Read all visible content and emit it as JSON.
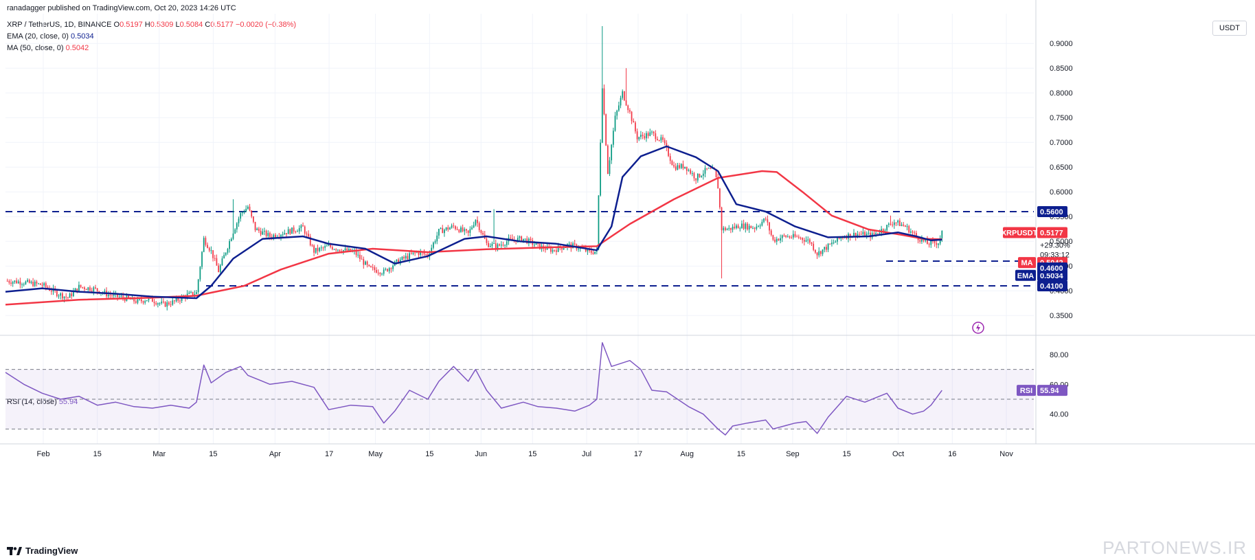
{
  "publisher": "ranadagger published on TradingView.com, Oct 20, 2023 14:26 UTC",
  "legend": {
    "symbol": "XRP / TetherUS, 1D, BINANCE",
    "o_label": "O",
    "o": "0.5197",
    "h_label": "H",
    "h": "0.5309",
    "l_label": "L",
    "l": "0.5084",
    "c_label": "C",
    "c": "0.5177",
    "change": "−0.0020 (−0.38%)",
    "ema_label": "EMA (20, close, 0)",
    "ema_value": "0.5034",
    "ma_label": "MA (50, close, 0)",
    "ma_value": "0.5042",
    "rsi_label": "RSI (14, close)",
    "rsi_value": "55.94"
  },
  "currency_button": "USDT",
  "footer_logo": "TradingView",
  "watermark": "PARTONEWS.IR",
  "colors": {
    "up": "#089981",
    "down": "#f23645",
    "ema": "#0d1f8f",
    "ma": "#f23645",
    "rsi": "#7e57c2",
    "level": "#0d1f8f",
    "grid": "#f0f3fa"
  },
  "chart_data": [
    {
      "type": "candlestick",
      "title": "XRP / TetherUS, 1D, BINANCE",
      "ylim": [
        0.31,
        0.96
      ],
      "y_ticks": [
        "0.9000",
        "0.8500",
        "0.8000",
        "0.7500",
        "0.7000",
        "0.6500",
        "0.6000",
        "0.5500",
        "0.5000",
        "0.4500",
        "0.4000",
        "0.3500"
      ],
      "x_ticks": [
        "Feb",
        "15",
        "Mar",
        "15",
        "Apr",
        "17",
        "May",
        "15",
        "Jun",
        "15",
        "Jul",
        "17",
        "Aug",
        "15",
        "Sep",
        "15",
        "Oct",
        "16",
        "Nov"
      ],
      "horizontal_levels": [
        0.56,
        0.46,
        0.41
      ],
      "price_labels": [
        {
          "text": "0.5600",
          "kind": "level"
        },
        {
          "text": "0.5177",
          "kind": "last",
          "extra": [
            "XRPUSDT",
            "+29.30%",
            "09:33:12"
          ]
        },
        {
          "text": "0.5042",
          "kind": "ma",
          "tag": "MA"
        },
        {
          "text": "0.5034",
          "kind": "ema",
          "tag": "EMA"
        },
        {
          "text": "0.4600",
          "kind": "level"
        },
        {
          "text": "0.4100",
          "kind": "level"
        }
      ],
      "price_path": [
        [
          0,
          0.42
        ],
        [
          8,
          0.418
        ],
        [
          20,
          0.412
        ],
        [
          28,
          0.395
        ],
        [
          34,
          0.386
        ],
        [
          40,
          0.408
        ],
        [
          48,
          0.404
        ],
        [
          56,
          0.392
        ],
        [
          64,
          0.386
        ],
        [
          72,
          0.378
        ],
        [
          78,
          0.384
        ],
        [
          86,
          0.372
        ],
        [
          92,
          0.378
        ],
        [
          98,
          0.39
        ],
        [
          104,
          0.396
        ],
        [
          108,
          0.505
        ],
        [
          112,
          0.48
        ],
        [
          116,
          0.44
        ],
        [
          120,
          0.48
        ],
        [
          124,
          0.52
        ],
        [
          128,
          0.555
        ],
        [
          132,
          0.57
        ],
        [
          136,
          0.525
        ],
        [
          144,
          0.51
        ],
        [
          152,
          0.518
        ],
        [
          162,
          0.528
        ],
        [
          168,
          0.48
        ],
        [
          176,
          0.49
        ],
        [
          184,
          0.482
        ],
        [
          190,
          0.478
        ],
        [
          198,
          0.445
        ],
        [
          206,
          0.438
        ],
        [
          210,
          0.45
        ],
        [
          214,
          0.46
        ],
        [
          224,
          0.478
        ],
        [
          230,
          0.472
        ],
        [
          236,
          0.52
        ],
        [
          244,
          0.53
        ],
        [
          252,
          0.515
        ],
        [
          256,
          0.545
        ],
        [
          262,
          0.495
        ],
        [
          268,
          0.49
        ],
        [
          274,
          0.502
        ],
        [
          282,
          0.505
        ],
        [
          290,
          0.49
        ],
        [
          298,
          0.482
        ],
        [
          306,
          0.492
        ],
        [
          312,
          0.488
        ],
        [
          318,
          0.478
        ],
        [
          322,
          0.48
        ],
        [
          325,
          0.815
        ],
        [
          328,
          0.64
        ],
        [
          332,
          0.75
        ],
        [
          336,
          0.8
        ],
        [
          340,
          0.76
        ],
        [
          344,
          0.71
        ],
        [
          352,
          0.718
        ],
        [
          358,
          0.702
        ],
        [
          364,
          0.65
        ],
        [
          370,
          0.652
        ],
        [
          376,
          0.628
        ],
        [
          382,
          0.645
        ],
        [
          386,
          0.642
        ],
        [
          388,
          0.61
        ],
        [
          390,
          0.525
        ],
        [
          394,
          0.525
        ],
        [
          400,
          0.532
        ],
        [
          408,
          0.528
        ],
        [
          414,
          0.545
        ],
        [
          418,
          0.502
        ],
        [
          424,
          0.51
        ],
        [
          432,
          0.508
        ],
        [
          438,
          0.5
        ],
        [
          442,
          0.475
        ],
        [
          448,
          0.49
        ],
        [
          456,
          0.51
        ],
        [
          464,
          0.515
        ],
        [
          472,
          0.512
        ],
        [
          478,
          0.525
        ],
        [
          484,
          0.54
        ],
        [
          490,
          0.53
        ],
        [
          496,
          0.51
        ],
        [
          502,
          0.495
        ],
        [
          508,
          0.498
        ],
        [
          510,
          0.5177
        ]
      ],
      "wick_events": [
        {
          "x": 124,
          "high": 0.585
        },
        {
          "x": 325,
          "high": 0.935
        },
        {
          "x": 338,
          "high": 0.85
        },
        {
          "x": 390,
          "low": 0.425
        },
        {
          "x": 266,
          "high": 0.565
        },
        {
          "x": 482,
          "high": 0.552
        }
      ],
      "ema20_path": [
        [
          0,
          0.398
        ],
        [
          20,
          0.405
        ],
        [
          40,
          0.398
        ],
        [
          60,
          0.394
        ],
        [
          80,
          0.388
        ],
        [
          104,
          0.385
        ],
        [
          112,
          0.41
        ],
        [
          124,
          0.465
        ],
        [
          140,
          0.505
        ],
        [
          162,
          0.51
        ],
        [
          176,
          0.495
        ],
        [
          196,
          0.485
        ],
        [
          212,
          0.455
        ],
        [
          230,
          0.47
        ],
        [
          250,
          0.505
        ],
        [
          262,
          0.51
        ],
        [
          280,
          0.5
        ],
        [
          300,
          0.495
        ],
        [
          322,
          0.482
        ],
        [
          330,
          0.53
        ],
        [
          336,
          0.63
        ],
        [
          346,
          0.672
        ],
        [
          360,
          0.692
        ],
        [
          376,
          0.67
        ],
        [
          388,
          0.642
        ],
        [
          398,
          0.575
        ],
        [
          414,
          0.56
        ],
        [
          430,
          0.53
        ],
        [
          448,
          0.508
        ],
        [
          470,
          0.51
        ],
        [
          486,
          0.518
        ],
        [
          496,
          0.51
        ],
        [
          504,
          0.502
        ],
        [
          510,
          0.5034
        ]
      ],
      "ma50_path": [
        [
          0,
          0.372
        ],
        [
          40,
          0.382
        ],
        [
          80,
          0.386
        ],
        [
          104,
          0.39
        ],
        [
          130,
          0.41
        ],
        [
          150,
          0.443
        ],
        [
          176,
          0.475
        ],
        [
          200,
          0.485
        ],
        [
          230,
          0.478
        ],
        [
          262,
          0.484
        ],
        [
          300,
          0.488
        ],
        [
          322,
          0.49
        ],
        [
          340,
          0.535
        ],
        [
          364,
          0.585
        ],
        [
          388,
          0.628
        ],
        [
          412,
          0.642
        ],
        [
          420,
          0.64
        ],
        [
          434,
          0.6
        ],
        [
          450,
          0.552
        ],
        [
          470,
          0.524
        ],
        [
          488,
          0.513
        ],
        [
          500,
          0.505
        ],
        [
          510,
          0.5042
        ]
      ]
    },
    {
      "type": "line",
      "title": "RSI (14, close)",
      "ylim": [
        20,
        92
      ],
      "y_ticks": [
        "80.00",
        "60.00",
        "40.00"
      ],
      "band": [
        30,
        70
      ],
      "midline": 50,
      "last_label": {
        "tag": "RSI",
        "text": "55.94"
      },
      "rsi_path": [
        [
          0,
          68
        ],
        [
          10,
          60
        ],
        [
          20,
          54
        ],
        [
          30,
          50
        ],
        [
          40,
          52
        ],
        [
          50,
          46
        ],
        [
          60,
          48
        ],
        [
          70,
          45
        ],
        [
          80,
          44
        ],
        [
          90,
          46
        ],
        [
          100,
          44
        ],
        [
          104,
          48
        ],
        [
          108,
          73
        ],
        [
          112,
          61
        ],
        [
          120,
          68
        ],
        [
          128,
          72
        ],
        [
          132,
          66
        ],
        [
          144,
          60
        ],
        [
          156,
          62
        ],
        [
          168,
          58
        ],
        [
          176,
          43
        ],
        [
          188,
          46
        ],
        [
          200,
          45
        ],
        [
          206,
          34
        ],
        [
          212,
          42
        ],
        [
          220,
          56
        ],
        [
          230,
          50
        ],
        [
          236,
          62
        ],
        [
          244,
          72
        ],
        [
          252,
          62
        ],
        [
          256,
          70
        ],
        [
          262,
          56
        ],
        [
          270,
          44
        ],
        [
          282,
          48
        ],
        [
          290,
          45
        ],
        [
          300,
          44
        ],
        [
          310,
          42
        ],
        [
          318,
          46
        ],
        [
          322,
          50
        ],
        [
          325,
          88
        ],
        [
          330,
          72
        ],
        [
          340,
          76
        ],
        [
          346,
          70
        ],
        [
          352,
          56
        ],
        [
          360,
          55
        ],
        [
          372,
          45
        ],
        [
          380,
          40
        ],
        [
          388,
          30
        ],
        [
          392,
          26
        ],
        [
          396,
          32
        ],
        [
          404,
          34
        ],
        [
          414,
          36
        ],
        [
          418,
          30
        ],
        [
          430,
          34
        ],
        [
          436,
          35
        ],
        [
          442,
          27
        ],
        [
          448,
          38
        ],
        [
          458,
          52
        ],
        [
          468,
          48
        ],
        [
          480,
          54
        ],
        [
          486,
          44
        ],
        [
          494,
          40
        ],
        [
          500,
          42
        ],
        [
          504,
          46
        ],
        [
          510,
          55.94
        ]
      ]
    }
  ]
}
